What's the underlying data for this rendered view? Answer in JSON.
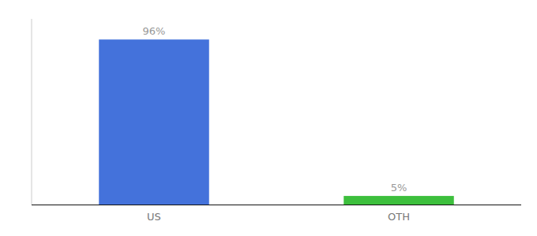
{
  "chart_data": {
    "type": "bar",
    "categories": [
      "US",
      "OTH"
    ],
    "values": [
      96,
      5
    ],
    "value_labels": [
      "96%",
      "5%"
    ],
    "colors": [
      "#4472db",
      "#3dbf3d"
    ],
    "ylim": [
      0,
      108
    ],
    "grid": false,
    "data_labels": true,
    "tick_labels": "x"
  }
}
